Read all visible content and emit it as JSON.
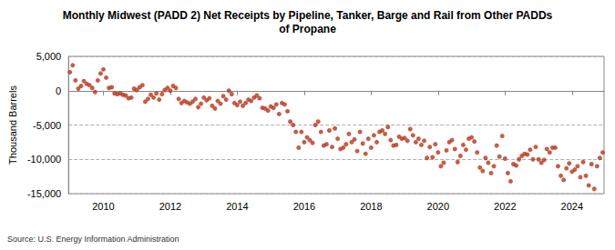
{
  "chart_data": {
    "type": "scatter",
    "title": "Monthly Midwest (PADD 2) Net Receipts by Pipeline, Tanker, Barge and Rail from Other PADDs\nof Propane",
    "y_label": "Thousand Barrels",
    "source": "Source: U.S. Energy Information Administration",
    "categories": [
      null,
      null,
      null,
      null,
      null,
      null,
      null,
      null,
      null,
      null,
      null,
      null,
      "2010",
      null,
      null,
      null,
      null,
      null,
      null,
      null,
      null,
      null,
      null,
      null,
      null,
      null,
      null,
      null,
      null,
      null,
      null,
      null,
      null,
      null,
      null,
      null,
      "2012",
      null,
      null,
      null,
      null,
      null,
      null,
      null,
      null,
      null,
      null,
      null,
      null,
      null,
      null,
      null,
      null,
      null,
      null,
      null,
      null,
      null,
      null,
      null,
      "2014",
      null,
      null,
      null,
      null,
      null,
      null,
      null,
      null,
      null,
      null,
      null,
      null,
      null,
      null,
      null,
      null,
      null,
      null,
      null,
      null,
      null,
      null,
      null,
      "2016",
      null,
      null,
      null,
      null,
      null,
      null,
      null,
      null,
      null,
      null,
      null,
      null,
      null,
      null,
      null,
      null,
      null,
      null,
      null,
      null,
      null,
      null,
      null,
      "2018",
      null,
      null,
      null,
      null,
      null,
      null,
      null,
      null,
      null,
      null,
      null,
      null,
      null,
      null,
      null,
      null,
      null,
      null,
      null,
      null,
      null,
      null,
      null,
      "2020",
      null,
      null,
      null,
      null,
      null,
      null,
      null,
      null,
      null,
      null,
      null,
      null,
      null,
      null,
      null,
      null,
      null,
      null,
      null,
      null,
      null,
      null,
      null,
      "2022",
      null,
      null,
      null,
      null,
      null,
      null,
      null,
      null,
      null,
      null,
      null,
      null,
      null,
      null,
      null,
      null,
      null,
      null,
      null,
      null,
      null,
      null,
      null,
      "2024",
      null,
      null,
      null,
      null,
      null,
      null,
      null,
      null,
      null,
      null,
      null
    ],
    "values": [
      2700,
      3700,
      1500,
      300,
      700,
      1400,
      1000,
      800,
      400,
      -200,
      1500,
      2500,
      3100,
      1900,
      400,
      500,
      -400,
      -500,
      -400,
      -600,
      -700,
      -1100,
      -1000,
      300,
      100,
      500,
      800,
      -1600,
      -1200,
      -600,
      -1000,
      -400,
      -1300,
      -500,
      100,
      400,
      0,
      700,
      400,
      -1200,
      -1800,
      -1500,
      -1700,
      -1900,
      -1600,
      -1200,
      -2400,
      -1900,
      -1000,
      -1400,
      -1100,
      -2200,
      -2600,
      -1500,
      -1900,
      -800,
      -1300,
      0,
      -500,
      -1800,
      -2100,
      -1600,
      -2200,
      -1800,
      -1300,
      -1500,
      -1000,
      -700,
      -1100,
      -2500,
      -2600,
      -2900,
      -2300,
      -2500,
      -2000,
      -3400,
      -1800,
      -2000,
      -3000,
      -4500,
      -5000,
      -6000,
      -8300,
      -6000,
      -7500,
      -6800,
      -7200,
      -7600,
      -5000,
      -4500,
      -6000,
      -8000,
      -7800,
      -5800,
      -8200,
      -5500,
      -7000,
      -8500,
      -8300,
      -7800,
      -6300,
      -7500,
      -7100,
      -8800,
      -6000,
      -7700,
      -9200,
      -7000,
      -8300,
      -6500,
      -7500,
      -6000,
      -5800,
      -6300,
      -5300,
      -7200,
      -8000,
      -7900,
      -6700,
      -7000,
      -6900,
      -7300,
      -5600,
      -6500,
      -7500,
      -7000,
      -7900,
      -7300,
      -9800,
      -8200,
      -9700,
      -7800,
      -9000,
      -11000,
      -10500,
      -8700,
      -7500,
      -7200,
      -8500,
      -10400,
      -9500,
      -7900,
      -8600,
      -7000,
      -6800,
      -7400,
      -9000,
      -11200,
      -11700,
      -9800,
      -10500,
      -12000,
      -11000,
      -8000,
      -9600,
      -6600,
      -9900,
      -12000,
      -13200,
      -10700,
      -10900,
      -10000,
      -9500,
      -9200,
      -9300,
      -8600,
      -10000,
      -8200,
      -10000,
      -10500,
      -10100,
      -8500,
      -9000,
      -8300,
      -8300,
      -11000,
      -12400,
      -13000,
      -11300,
      -10600,
      -11800,
      -11500,
      -11000,
      -12600,
      -10400,
      -12400,
      -13800,
      -10700,
      -14300,
      -11000,
      -9800,
      -9000
    ],
    "color": "#b5361c",
    "marker": "circle",
    "ylim": [
      -15000,
      5000
    ],
    "yticks": [
      {
        "value": -15000,
        "label": "-15,000"
      },
      {
        "value": -10000,
        "label": "-10,000"
      },
      {
        "value": -5000,
        "label": "-5,000"
      },
      0,
      {
        "value": 5000,
        "label": "5,000"
      }
    ],
    "grid": true
  }
}
